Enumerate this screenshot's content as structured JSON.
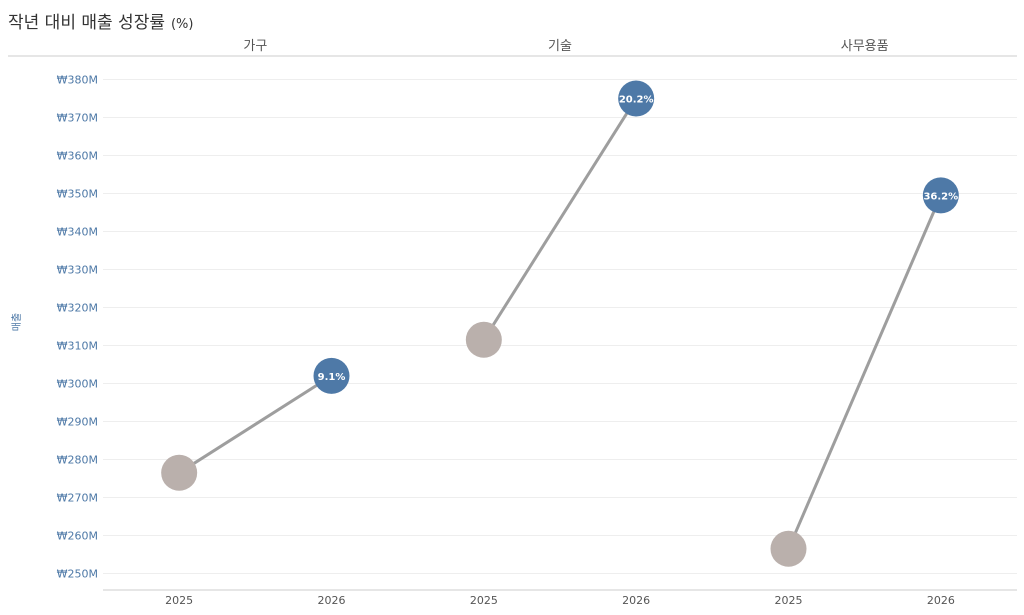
{
  "title": "작년 대비 매출 성장률",
  "title_suffix": "(%)",
  "colors": {
    "prev_point": "#bab0ac",
    "curr_point": "#4e79a7",
    "connector": "#9e9e9e",
    "axis_label": "#4e79a7",
    "grid": "#eeeeee",
    "text": "#555555"
  },
  "chart_data": {
    "type": "dumbbell",
    "title": "작년 대비 매출 성장률 (%)",
    "ylabel": "매출",
    "ylim": [
      245,
      384
    ],
    "y_ticks": [
      250,
      260,
      270,
      280,
      290,
      300,
      310,
      320,
      330,
      340,
      350,
      360,
      370,
      380
    ],
    "y_tick_labels": [
      "₩250M",
      "₩260M",
      "₩270M",
      "₩280M",
      "₩290M",
      "₩300M",
      "₩310M",
      "₩320M",
      "₩330M",
      "₩340M",
      "₩350M",
      "₩360M",
      "₩370M",
      "₩380M"
    ],
    "y_unit": "₩M",
    "x_labels": [
      "2025",
      "2026"
    ],
    "grid": true,
    "panels": [
      {
        "category": "가구",
        "values": [
          276.5,
          302.0
        ],
        "growth_label": "9.1%"
      },
      {
        "category": "기술",
        "values": [
          311.5,
          375.0
        ],
        "growth_label": "20.2%"
      },
      {
        "category": "사무용품",
        "values": [
          256.5,
          349.5
        ],
        "growth_label": "36.2%"
      }
    ]
  }
}
